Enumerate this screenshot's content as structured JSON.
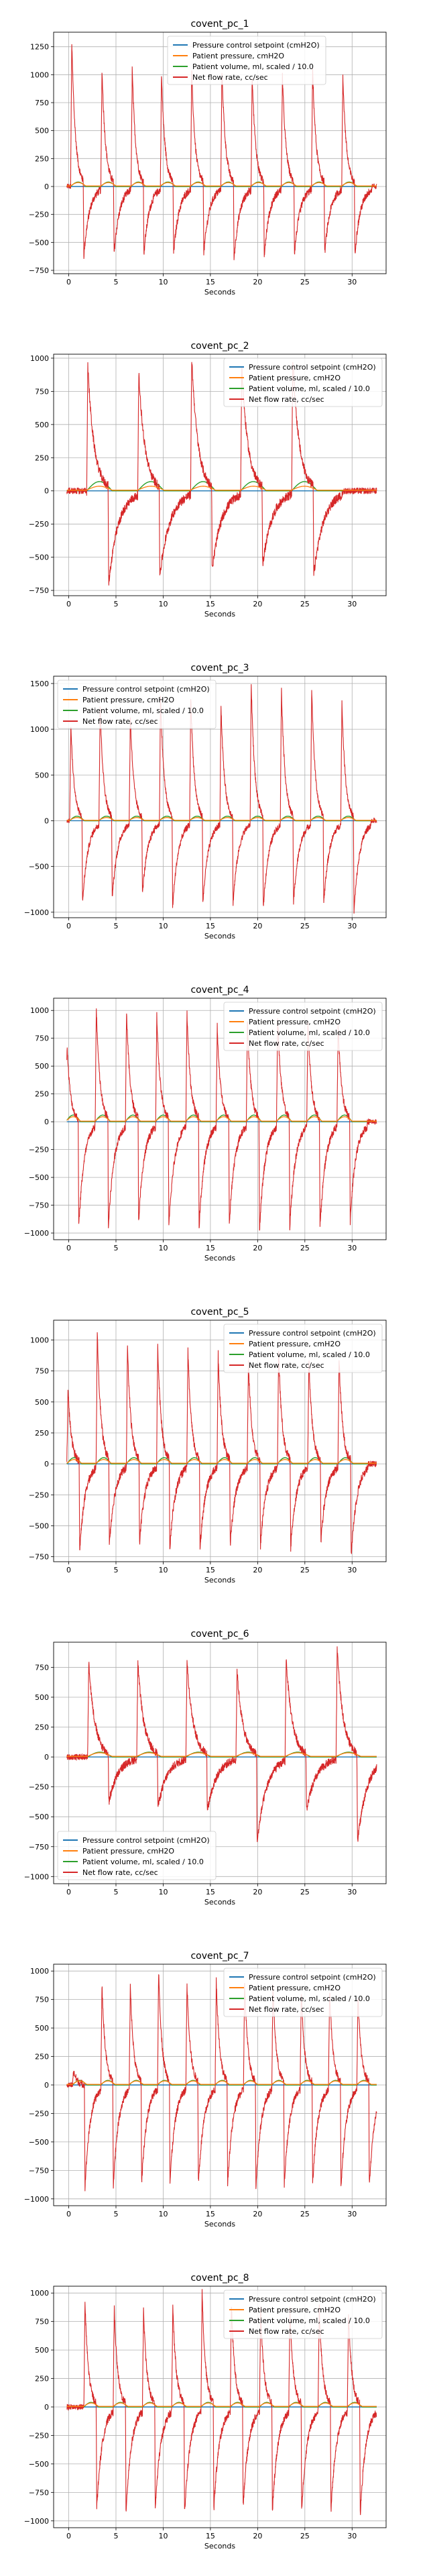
{
  "colors": {
    "setpoint": "#1f77b4",
    "pressure": "#ff7f0e",
    "volume": "#2ca02c",
    "flow": "#d62728",
    "grid": "#b0b0b0"
  },
  "chart_data": [
    {
      "type": "line",
      "title": "covent_pc_1",
      "xlabel": "Seconds",
      "ylabel": "",
      "xlim": [
        -1.6,
        33.6
      ],
      "ylim": [
        -780,
        1380
      ],
      "xticks": [
        0,
        5,
        10,
        15,
        20,
        25,
        30
      ],
      "yticks": [
        -750,
        -500,
        -250,
        0,
        250,
        500,
        750,
        1000,
        1250
      ],
      "grid": true,
      "legend_position": "top-center",
      "breath_starts": [
        0.2,
        3.4,
        6.6,
        9.7,
        12.9,
        16.1,
        19.3,
        22.5,
        25.7,
        28.9
      ],
      "flow_peaks": [
        1300,
        1050,
        1050,
        1000,
        1020,
        1050,
        1000,
        1000,
        1050,
        1000
      ],
      "flow_troughs": [
        -620,
        -600,
        -600,
        -600,
        -600,
        -650,
        -610,
        -600,
        -600,
        -600
      ],
      "series": [
        {
          "name": "Pressure control setpoint (cmH2O)",
          "values": [
            0,
            0
          ]
        },
        {
          "name": "Patient pressure, cmH2O",
          "values": [
            5,
            30,
            5
          ]
        },
        {
          "name": "Patient volume, ml, scaled / 10.0",
          "values": [
            0,
            40,
            0
          ]
        },
        {
          "name": "Net flow rate, cc/sec",
          "values": [
            1300,
            -620
          ]
        }
      ]
    },
    {
      "type": "line",
      "title": "covent_pc_2",
      "xlabel": "Seconds",
      "ylabel": "",
      "xlim": [
        -1.6,
        33.6
      ],
      "ylim": [
        -790,
        1030
      ],
      "xticks": [
        0,
        5,
        10,
        15,
        20,
        25,
        30
      ],
      "yticks": [
        -750,
        -500,
        -250,
        0,
        250,
        500,
        750,
        1000
      ],
      "grid": true,
      "legend_position": "top-right",
      "breath_starts": [
        1.9,
        7.3,
        12.9,
        18.2,
        23.6
      ],
      "flow_peaks": [
        940,
        880,
        1000,
        930,
        1000
      ],
      "flow_troughs": [
        -700,
        -640,
        -600,
        -560,
        -640
      ],
      "series": [
        {
          "name": "Pressure control setpoint (cmH2O)",
          "values": [
            0,
            0
          ]
        },
        {
          "name": "Patient pressure, cmH2O",
          "values": [
            5,
            30,
            5
          ]
        },
        {
          "name": "Patient volume, ml, scaled / 10.0",
          "values": [
            0,
            70,
            0
          ]
        },
        {
          "name": "Net flow rate, cc/sec",
          "values": [
            1000,
            -700
          ]
        }
      ]
    },
    {
      "type": "line",
      "title": "covent_pc_3",
      "xlabel": "Seconds",
      "ylabel": "",
      "xlim": [
        -1.6,
        33.6
      ],
      "ylim": [
        -1060,
        1580
      ],
      "xticks": [
        0,
        5,
        10,
        15,
        20,
        25,
        30
      ],
      "yticks": [
        -1000,
        -500,
        0,
        500,
        1000,
        1500
      ],
      "grid": true,
      "legend_position": "top-left",
      "breath_starts": [
        0.1,
        3.2,
        6.4,
        9.6,
        12.8,
        16.0,
        19.2,
        22.4,
        25.6,
        28.8
      ],
      "flow_peaks": [
        1050,
        1250,
        1150,
        1350,
        1350,
        1250,
        1500,
        1450,
        1450,
        1300
      ],
      "flow_troughs": [
        -900,
        -850,
        -800,
        -950,
        -900,
        -900,
        -950,
        -900,
        -900,
        -1000
      ],
      "series": [
        {
          "name": "Pressure control setpoint (cmH2O)",
          "values": [
            0,
            0
          ]
        },
        {
          "name": "Patient pressure, cmH2O",
          "values": [
            5,
            30,
            5
          ]
        },
        {
          "name": "Patient volume, ml, scaled / 10.0",
          "values": [
            0,
            50,
            0
          ]
        },
        {
          "name": "Net flow rate, cc/sec",
          "values": [
            1500,
            -1000
          ]
        }
      ]
    },
    {
      "type": "line",
      "title": "covent_pc_4",
      "xlabel": "Seconds",
      "ylabel": "",
      "xlim": [
        -1.6,
        33.6
      ],
      "ylim": [
        -1060,
        1110
      ],
      "xticks": [
        0,
        5,
        10,
        15,
        20,
        25,
        30
      ],
      "yticks": [
        -1000,
        -750,
        -500,
        -250,
        0,
        250,
        500,
        750,
        1000
      ],
      "grid": true,
      "legend_position": "top-right",
      "breath_starts": [
        -0.3,
        2.8,
        6.0,
        9.2,
        12.4,
        15.6,
        18.8,
        22.0,
        25.2,
        28.4
      ],
      "flow_peaks": [
        680,
        1020,
        1000,
        950,
        980,
        850,
        900,
        950,
        900,
        870
      ],
      "flow_troughs": [
        -950,
        -950,
        -900,
        -950,
        -950,
        -920,
        -970,
        -950,
        -960,
        -900
      ],
      "series": [
        {
          "name": "Pressure control setpoint (cmH2O)",
          "values": [
            0,
            0
          ]
        },
        {
          "name": "Patient pressure, cmH2O",
          "values": [
            5,
            40,
            5
          ]
        },
        {
          "name": "Patient volume, ml, scaled / 10.0",
          "values": [
            0,
            60,
            0
          ]
        },
        {
          "name": "Net flow rate, cc/sec",
          "values": [
            1020,
            -970
          ]
        }
      ]
    },
    {
      "type": "line",
      "title": "covent_pc_5",
      "xlabel": "Seconds",
      "ylabel": "",
      "xlim": [
        -1.6,
        33.6
      ],
      "ylim": [
        -790,
        1160
      ],
      "xticks": [
        0,
        5,
        10,
        15,
        20,
        25,
        30
      ],
      "yticks": [
        -750,
        -500,
        -250,
        0,
        250,
        500,
        750,
        1000
      ],
      "grid": true,
      "legend_position": "top-right",
      "breath_starts": [
        -0.2,
        2.9,
        6.1,
        9.3,
        12.5,
        15.7,
        18.9,
        22.1,
        25.3,
        28.5
      ],
      "flow_peaks": [
        600,
        1080,
        950,
        950,
        900,
        880,
        820,
        900,
        850,
        850
      ],
      "flow_troughs": [
        -700,
        -650,
        -640,
        -680,
        -680,
        -650,
        -660,
        -680,
        -620,
        -750
      ],
      "series": [
        {
          "name": "Pressure control setpoint (cmH2O)",
          "values": [
            0,
            0
          ]
        },
        {
          "name": "Patient pressure, cmH2O",
          "values": [
            5,
            30,
            5
          ]
        },
        {
          "name": "Patient volume, ml, scaled / 10.0",
          "values": [
            0,
            50,
            0
          ]
        },
        {
          "name": "Net flow rate, cc/sec",
          "values": [
            1080,
            -750
          ]
        }
      ]
    },
    {
      "type": "line",
      "title": "covent_pc_6",
      "xlabel": "Seconds",
      "ylabel": "",
      "xlim": [
        -1.6,
        33.6
      ],
      "ylim": [
        -1060,
        960
      ],
      "xticks": [
        0,
        5,
        10,
        15,
        20,
        25,
        30
      ],
      "yticks": [
        -1000,
        -750,
        -500,
        -250,
        0,
        250,
        500,
        750
      ],
      "grid": true,
      "legend_position": "bottom-left",
      "breath_starts": [
        2.0,
        7.2,
        12.4,
        17.7,
        22.9,
        28.3
      ],
      "flow_peaks": [
        800,
        780,
        800,
        720,
        820,
        900
      ],
      "flow_troughs": [
        -380,
        -420,
        -450,
        -720,
        -450,
        -720
      ],
      "series": [
        {
          "name": "Pressure control setpoint (cmH2O)",
          "values": [
            0,
            0
          ]
        },
        {
          "name": "Patient pressure, cmH2O",
          "values": [
            5,
            30,
            5
          ]
        },
        {
          "name": "Patient volume, ml, scaled / 10.0",
          "values": [
            0,
            40,
            0
          ]
        },
        {
          "name": "Net flow rate, cc/sec",
          "values": [
            900,
            -720
          ]
        }
      ]
    },
    {
      "type": "line",
      "title": "covent_pc_7",
      "xlabel": "Seconds",
      "ylabel": "",
      "xlim": [
        -1.6,
        33.6
      ],
      "ylim": [
        -1060,
        1060
      ],
      "xticks": [
        0,
        5,
        10,
        15,
        20,
        25,
        30
      ],
      "yticks": [
        -1000,
        -750,
        -500,
        -250,
        0,
        250,
        500,
        750,
        1000
      ],
      "grid": true,
      "legend_position": "top-right",
      "breath_starts": [
        0.4,
        3.4,
        6.4,
        9.4,
        12.4,
        15.5,
        18.5,
        21.5,
        24.5,
        27.5,
        30.5
      ],
      "flow_peaks": [
        120,
        880,
        860,
        1000,
        900,
        920,
        900,
        860,
        820,
        840,
        780
      ],
      "flow_troughs": [
        -900,
        -880,
        -850,
        -860,
        -870,
        -880,
        -900,
        -880,
        -870,
        -900,
        -900
      ],
      "series": [
        {
          "name": "Pressure control setpoint (cmH2O)",
          "values": [
            0,
            0
          ]
        },
        {
          "name": "Patient pressure, cmH2O",
          "values": [
            5,
            30,
            5
          ]
        },
        {
          "name": "Patient volume, ml, scaled / 10.0",
          "values": [
            0,
            40,
            0
          ]
        },
        {
          "name": "Net flow rate, cc/sec",
          "values": [
            1000,
            -900
          ]
        }
      ]
    },
    {
      "type": "line",
      "title": "covent_pc_8",
      "xlabel": "Seconds",
      "ylabel": "",
      "xlim": [
        -1.6,
        33.6
      ],
      "ylim": [
        -1060,
        1060
      ],
      "xticks": [
        0,
        5,
        10,
        15,
        20,
        25,
        30
      ],
      "yticks": [
        -1000,
        -750,
        -500,
        -250,
        0,
        250,
        500,
        750,
        1000
      ],
      "grid": true,
      "legend_position": "top-right",
      "breath_starts": [
        1.6,
        4.7,
        7.8,
        10.9,
        14.0,
        17.1,
        20.2,
        23.3,
        26.4,
        29.5
      ],
      "flow_peaks": [
        920,
        860,
        840,
        880,
        1000,
        900,
        840,
        850,
        880,
        820
      ],
      "flow_troughs": [
        -900,
        -920,
        -900,
        -950,
        -900,
        -880,
        -920,
        -900,
        -920,
        -960
      ],
      "series": [
        {
          "name": "Pressure control setpoint (cmH2O)",
          "values": [
            0,
            0
          ]
        },
        {
          "name": "Patient pressure, cmH2O",
          "values": [
            5,
            30,
            5
          ]
        },
        {
          "name": "Patient volume, ml, scaled / 10.0",
          "values": [
            0,
            40,
            0
          ]
        },
        {
          "name": "Net flow rate, cc/sec",
          "values": [
            1000,
            -960
          ]
        }
      ]
    }
  ]
}
